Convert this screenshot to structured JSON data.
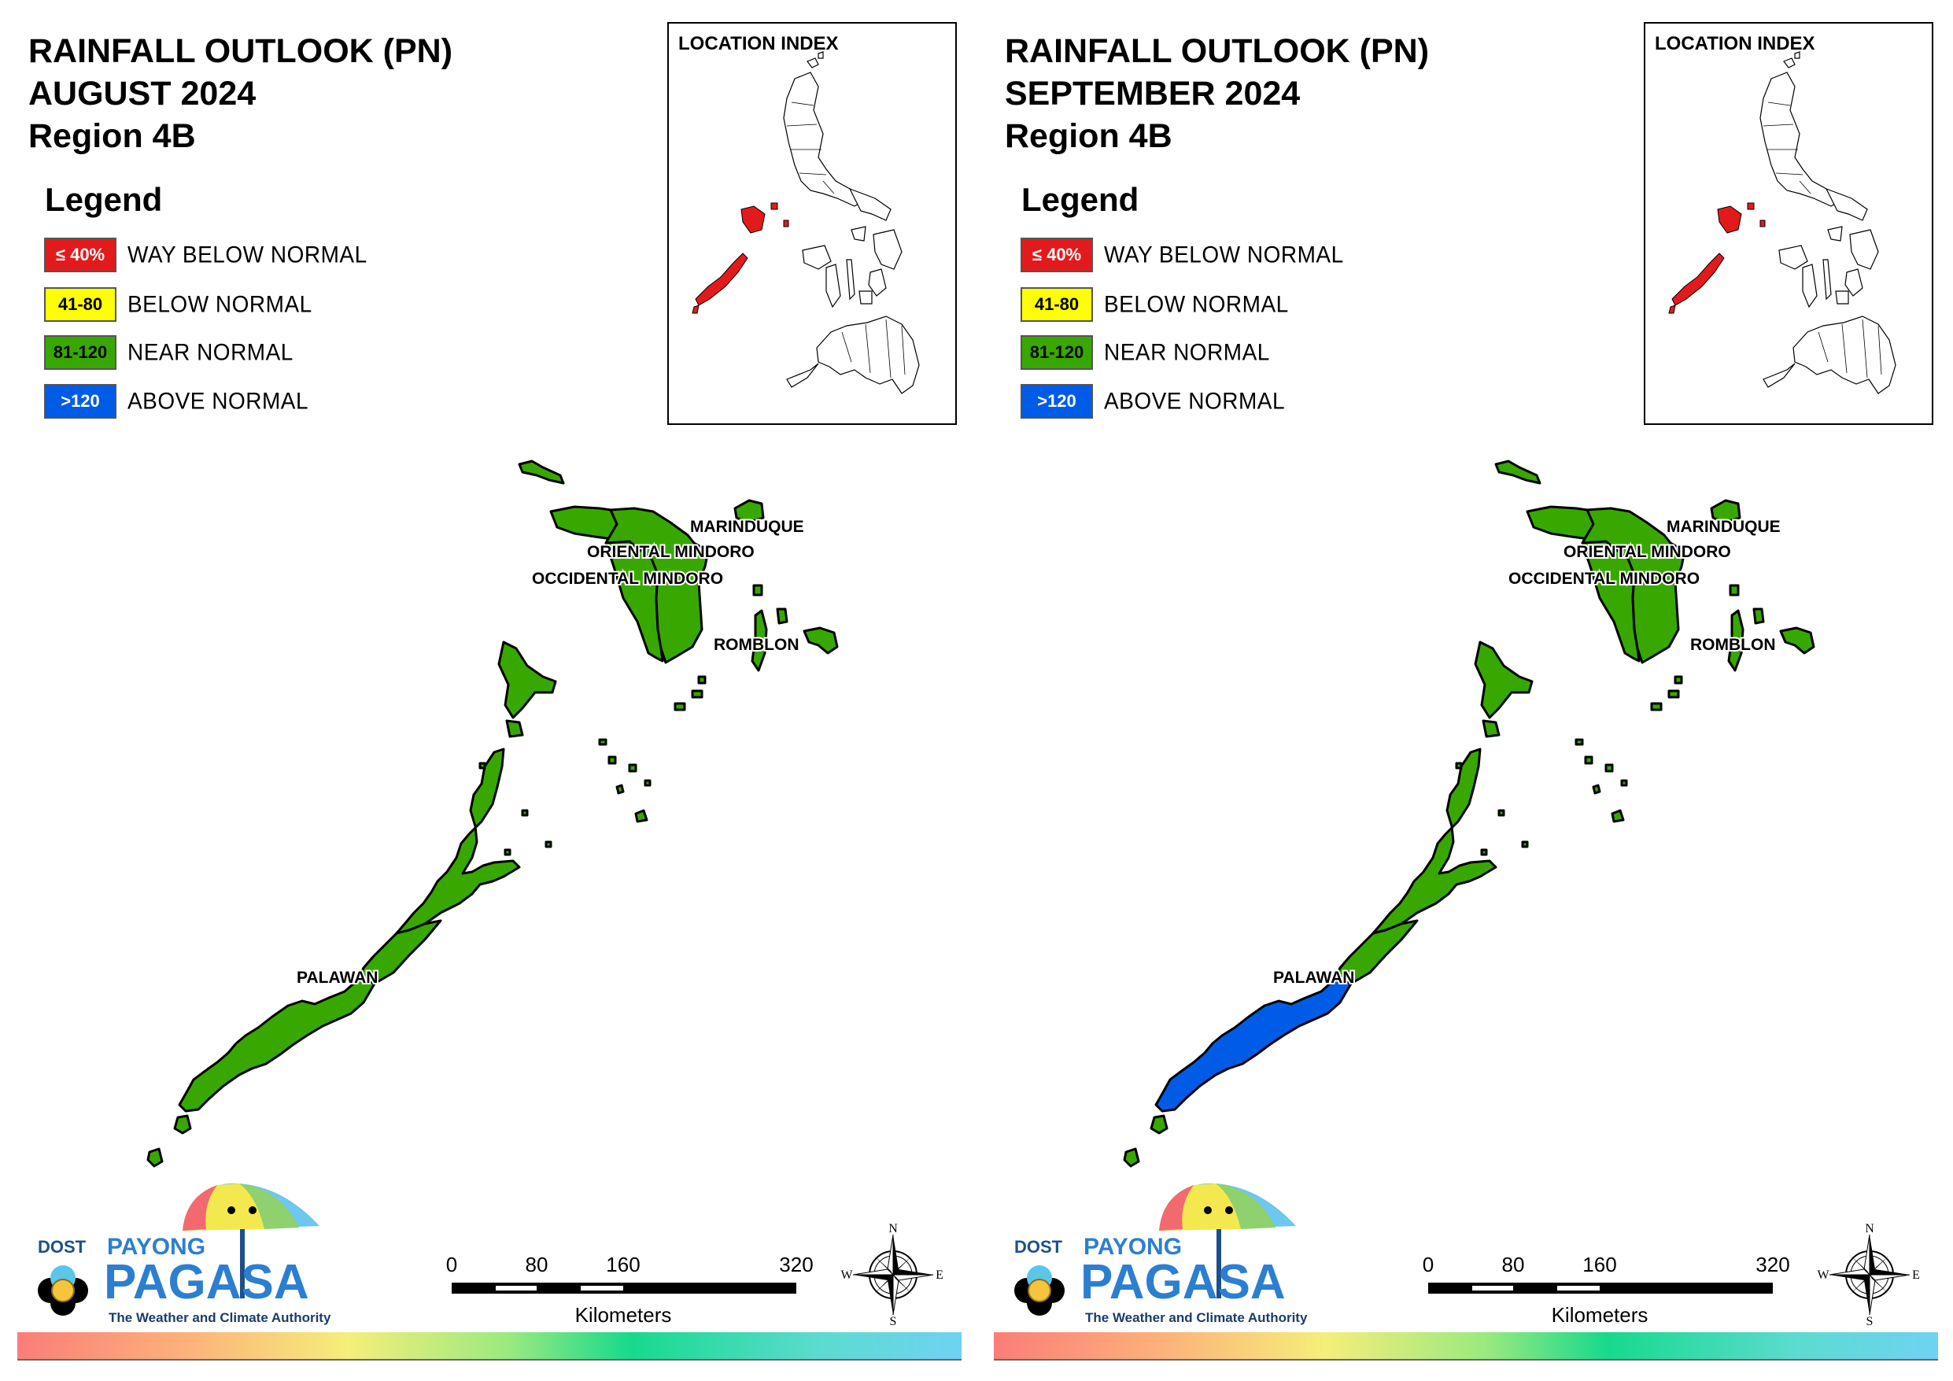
{
  "colors": {
    "way_below": "#e31a1c",
    "below": "#ffff00",
    "near": "#38a800",
    "above": "#005ce6",
    "outline": "#000000"
  },
  "panels": [
    {
      "title_line1": "RAINFALL OUTLOOK (PN)",
      "title_line2": "AUGUST 2024",
      "title_line3": "Region 4B",
      "palawan_south_category": "near"
    },
    {
      "title_line1": "RAINFALL OUTLOOK (PN)",
      "title_line2": "SEPTEMBER 2024",
      "title_line3": "Region 4B",
      "palawan_south_category": "above"
    }
  ],
  "legend": {
    "title": "Legend",
    "items": [
      {
        "range": "≤ 40%",
        "label": "WAY BELOW NORMAL",
        "color": "#e31a1c",
        "text_color": "#ffffff"
      },
      {
        "range": "41-80",
        "label": "BELOW NORMAL",
        "color": "#ffff00",
        "text_color": "#000000"
      },
      {
        "range": "81-120",
        "label": "NEAR NORMAL",
        "color": "#38a800",
        "text_color": "#000000"
      },
      {
        "range": ">120",
        "label": "ABOVE NORMAL",
        "color": "#005ce6",
        "text_color": "#ffffff"
      }
    ]
  },
  "inset": {
    "title": "LOCATION INDEX"
  },
  "provinces": {
    "marinduque": "MARINDUQUE",
    "oriental_mindoro": "ORIENTAL MINDORO",
    "occidental_mindoro": "OCCIDENTAL MINDORO",
    "romblon": "ROMBLON",
    "palawan": "PALAWAN"
  },
  "scale": {
    "ticks": [
      "0",
      "80",
      "160",
      "320"
    ],
    "unit": "Kilometers"
  },
  "compass": {
    "n": "N",
    "s": "S",
    "e": "E",
    "w": "W"
  },
  "logo": {
    "dost": "DOST",
    "payong": "PAYONG",
    "pagasa": "PAGASA",
    "tagline": "The Weather and Climate Authority"
  }
}
